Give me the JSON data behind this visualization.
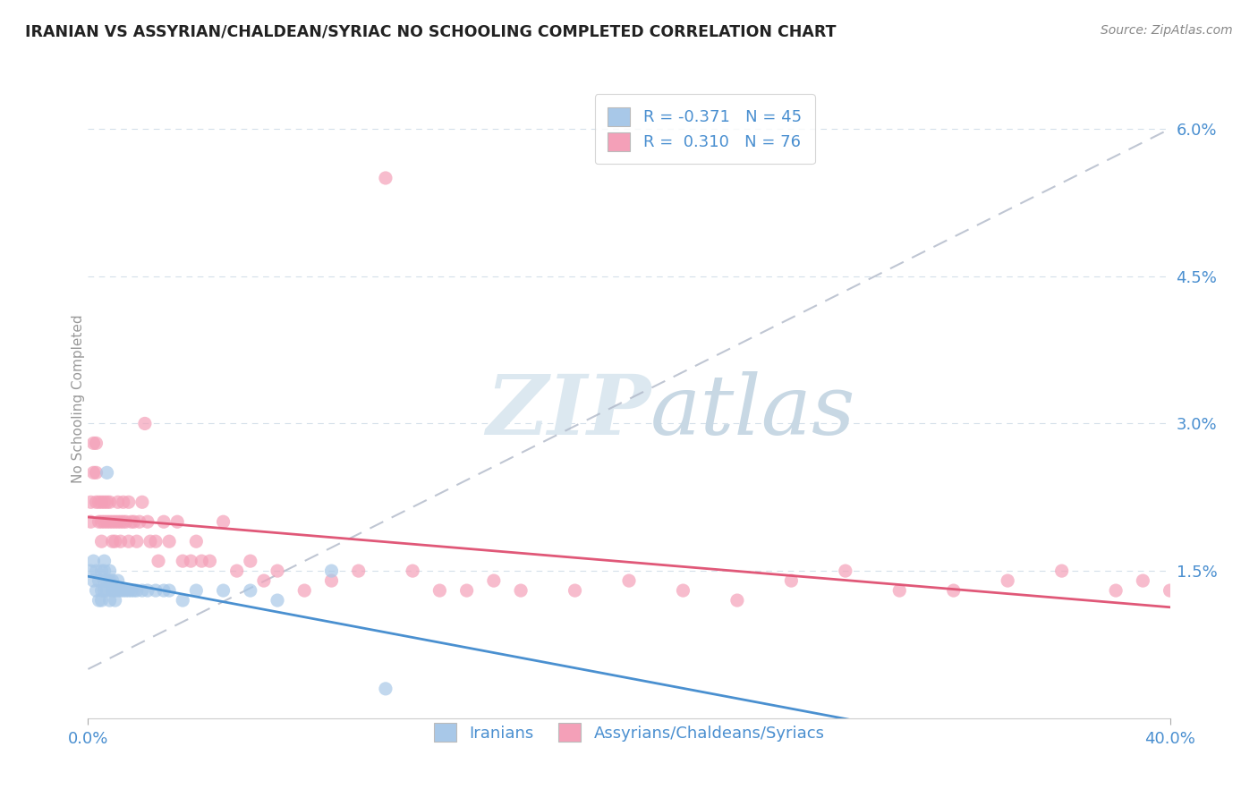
{
  "title": "IRANIAN VS ASSYRIAN/CHALDEAN/SYRIAC NO SCHOOLING COMPLETED CORRELATION CHART",
  "source": "Source: ZipAtlas.com",
  "ylabel": "No Schooling Completed",
  "xlim": [
    0.0,
    0.4
  ],
  "ylim": [
    0.0,
    0.065
  ],
  "yticks": [
    0.0,
    0.015,
    0.03,
    0.045,
    0.06
  ],
  "ytick_labels": [
    "",
    "1.5%",
    "3.0%",
    "4.5%",
    "6.0%"
  ],
  "xticks": [
    0.0,
    0.4
  ],
  "xtick_labels": [
    "0.0%",
    "40.0%"
  ],
  "legend_R1": "-0.371",
  "legend_N1": "45",
  "legend_R2": "0.310",
  "legend_N2": "76",
  "legend_label1": "Iranians",
  "legend_label2": "Assyrians/Chaldeans/Syriacs",
  "color_iranian": "#a8c8e8",
  "color_assyrian": "#f4a0b8",
  "line_color_iranian": "#4a90d0",
  "line_color_assyrian": "#e05878",
  "background_color": "#ffffff",
  "grid_color": "#d0dde8",
  "title_color": "#222222",
  "axis_label_color": "#4a8fd0",
  "watermark_color": "#dce8f0",
  "iranians_x": [
    0.001,
    0.002,
    0.002,
    0.003,
    0.003,
    0.004,
    0.004,
    0.005,
    0.005,
    0.005,
    0.006,
    0.006,
    0.006,
    0.006,
    0.007,
    0.007,
    0.007,
    0.008,
    0.008,
    0.008,
    0.009,
    0.009,
    0.01,
    0.01,
    0.011,
    0.011,
    0.012,
    0.013,
    0.014,
    0.015,
    0.016,
    0.017,
    0.018,
    0.02,
    0.022,
    0.025,
    0.028,
    0.03,
    0.035,
    0.04,
    0.05,
    0.06,
    0.07,
    0.09,
    0.11
  ],
  "iranians_y": [
    0.015,
    0.016,
    0.014,
    0.013,
    0.015,
    0.014,
    0.012,
    0.013,
    0.015,
    0.012,
    0.014,
    0.013,
    0.015,
    0.016,
    0.025,
    0.014,
    0.013,
    0.014,
    0.015,
    0.012,
    0.013,
    0.014,
    0.013,
    0.012,
    0.014,
    0.013,
    0.013,
    0.013,
    0.013,
    0.013,
    0.013,
    0.013,
    0.013,
    0.013,
    0.013,
    0.013,
    0.013,
    0.013,
    0.012,
    0.013,
    0.013,
    0.013,
    0.012,
    0.015,
    0.003
  ],
  "assyrians_x": [
    0.001,
    0.001,
    0.002,
    0.002,
    0.003,
    0.003,
    0.003,
    0.004,
    0.004,
    0.005,
    0.005,
    0.005,
    0.006,
    0.006,
    0.007,
    0.007,
    0.008,
    0.008,
    0.009,
    0.009,
    0.01,
    0.01,
    0.011,
    0.011,
    0.012,
    0.012,
    0.013,
    0.013,
    0.014,
    0.015,
    0.015,
    0.016,
    0.017,
    0.018,
    0.019,
    0.02,
    0.021,
    0.022,
    0.023,
    0.025,
    0.026,
    0.028,
    0.03,
    0.033,
    0.035,
    0.038,
    0.04,
    0.042,
    0.045,
    0.05,
    0.055,
    0.06,
    0.065,
    0.07,
    0.08,
    0.09,
    0.1,
    0.11,
    0.12,
    0.13,
    0.14,
    0.15,
    0.16,
    0.18,
    0.2,
    0.22,
    0.24,
    0.26,
    0.28,
    0.3,
    0.32,
    0.34,
    0.36,
    0.38,
    0.39,
    0.4
  ],
  "assyrians_y": [
    0.02,
    0.022,
    0.028,
    0.025,
    0.025,
    0.022,
    0.028,
    0.022,
    0.02,
    0.022,
    0.02,
    0.018,
    0.022,
    0.02,
    0.022,
    0.02,
    0.022,
    0.02,
    0.02,
    0.018,
    0.02,
    0.018,
    0.022,
    0.02,
    0.02,
    0.018,
    0.022,
    0.02,
    0.02,
    0.022,
    0.018,
    0.02,
    0.02,
    0.018,
    0.02,
    0.022,
    0.03,
    0.02,
    0.018,
    0.018,
    0.016,
    0.02,
    0.018,
    0.02,
    0.016,
    0.016,
    0.018,
    0.016,
    0.016,
    0.02,
    0.015,
    0.016,
    0.014,
    0.015,
    0.013,
    0.014,
    0.015,
    0.055,
    0.015,
    0.013,
    0.013,
    0.014,
    0.013,
    0.013,
    0.014,
    0.013,
    0.012,
    0.014,
    0.015,
    0.013,
    0.013,
    0.014,
    0.015,
    0.013,
    0.014,
    0.013
  ]
}
